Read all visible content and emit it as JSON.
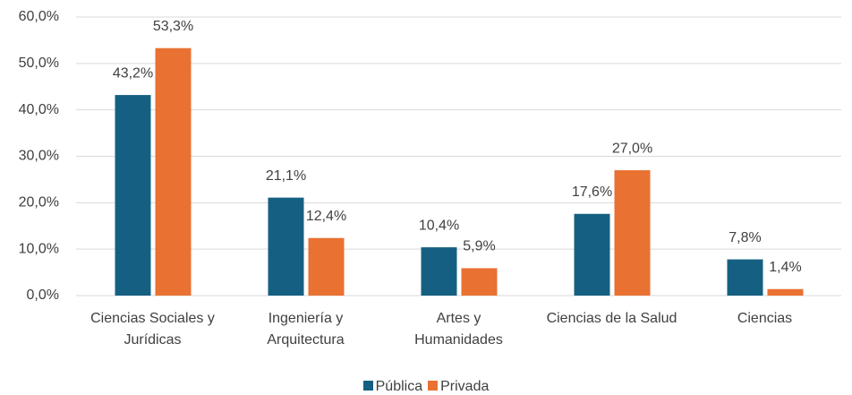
{
  "chart_data": {
    "type": "bar",
    "categories": [
      "Ciencias Sociales y\nJurídicas",
      "Ingeniería y\nArquitectura",
      "Artes y\nHumanidades",
      "Ciencias de la Salud",
      "Ciencias"
    ],
    "series": [
      {
        "name": "Pública",
        "color": "#156082",
        "values": [
          43.2,
          21.1,
          10.4,
          17.6,
          7.8
        ],
        "value_labels": [
          "43,2%",
          "21,1%",
          "10,4%",
          "17,6%",
          "7,8%"
        ]
      },
      {
        "name": "Privada",
        "color": "#e97132",
        "values": [
          53.3,
          12.4,
          5.9,
          27.0,
          1.4
        ],
        "value_labels": [
          "53,3%",
          "12,4%",
          "5,9%",
          "27,0%",
          "1,4%"
        ]
      }
    ],
    "ylim": [
      0,
      60
    ],
    "yticks": [
      {
        "value": 0,
        "label": "0,0%"
      },
      {
        "value": 10,
        "label": "10,0%"
      },
      {
        "value": 20,
        "label": "20,0%"
      },
      {
        "value": 30,
        "label": "30,0%"
      },
      {
        "value": 40,
        "label": "40,0%"
      },
      {
        "value": 50,
        "label": "50,0%"
      },
      {
        "value": 60,
        "label": "60,0%"
      }
    ],
    "grid": true,
    "legend": "bottom"
  }
}
